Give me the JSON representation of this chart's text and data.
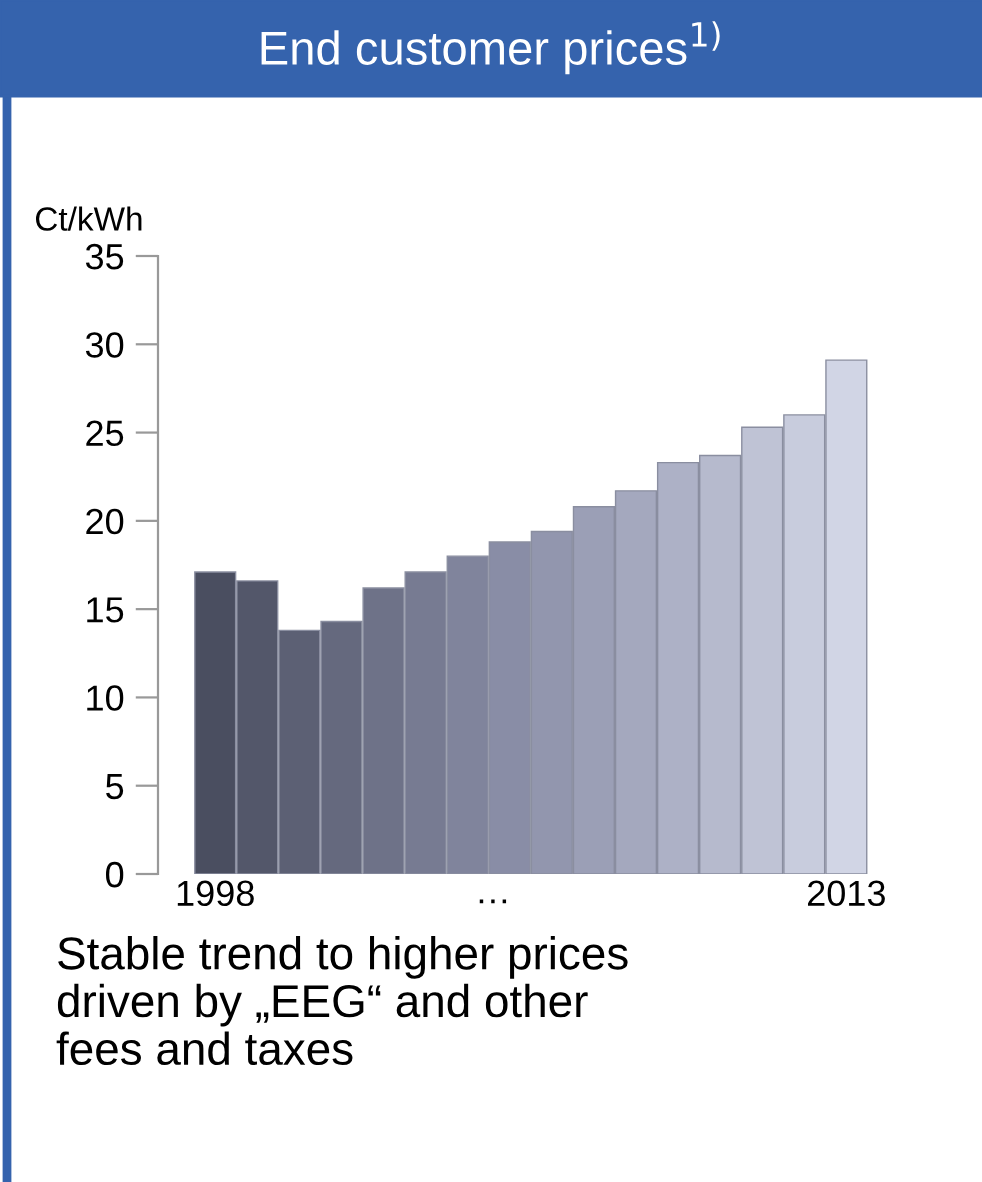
{
  "chart_data": {
    "type": "bar",
    "title": "End customer prices$^{1)}$",
    "ylabel": "Ct/kWh",
    "categories": [
      "1998",
      null,
      null,
      null,
      null,
      null,
      null,
      null,
      null,
      null,
      null,
      null,
      null,
      null,
      null,
      "2013"
    ],
    "values": [
      17.1,
      16.6,
      13.8,
      14.3,
      16.2,
      17.1,
      18.0,
      18.8,
      19.4,
      20.8,
      21.7,
      23.3,
      23.7,
      25.3,
      26.0,
      29.1
    ],
    "colors": [
      "#4a4e60",
      "#53576a",
      "#5c6074",
      "#65697e",
      "#6e7288",
      "#777b92",
      "#80849c",
      "#898da6",
      "#9296ae",
      "#9b9fb6",
      "#a4a8be",
      "#adb1c6",
      "#b6bacd",
      "#bfc3d5",
      "#c8ccdd",
      "#d1d5e5"
    ],
    "ylim": [
      0,
      35
    ],
    "yticks": [
      0,
      5,
      10,
      15,
      20,
      25,
      30,
      35
    ],
    "grid": false,
    "annotations": [
      "…",
      "Stable trend to higher prices\ndriven by „EEG“ and other\nfees and taxes"
    ]
  }
}
